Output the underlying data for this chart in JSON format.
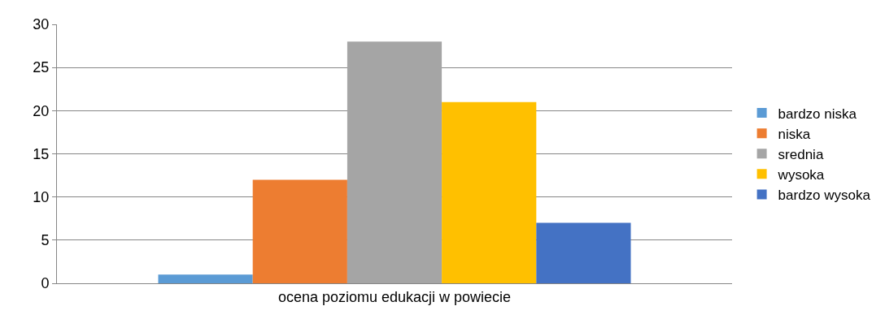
{
  "chart_data": {
    "type": "bar",
    "categories": [
      "ocena poziomu edukacji w powiecie"
    ],
    "series": [
      {
        "name": "bardzo niska",
        "color": "#5b9bd5",
        "values": [
          1
        ]
      },
      {
        "name": "niska",
        "color": "#ed7d31",
        "values": [
          12
        ]
      },
      {
        "name": "srednia",
        "color": "#a5a5a5",
        "values": [
          28
        ]
      },
      {
        "name": "wysoka",
        "color": "#ffc000",
        "values": [
          21
        ]
      },
      {
        "name": "bardzo wysoka",
        "color": "#4472c4",
        "values": [
          7
        ]
      }
    ],
    "ylim": [
      0,
      30
    ],
    "yticks": [
      0,
      5,
      10,
      15,
      20,
      25,
      30
    ],
    "grid": "y",
    "legend": "right"
  }
}
